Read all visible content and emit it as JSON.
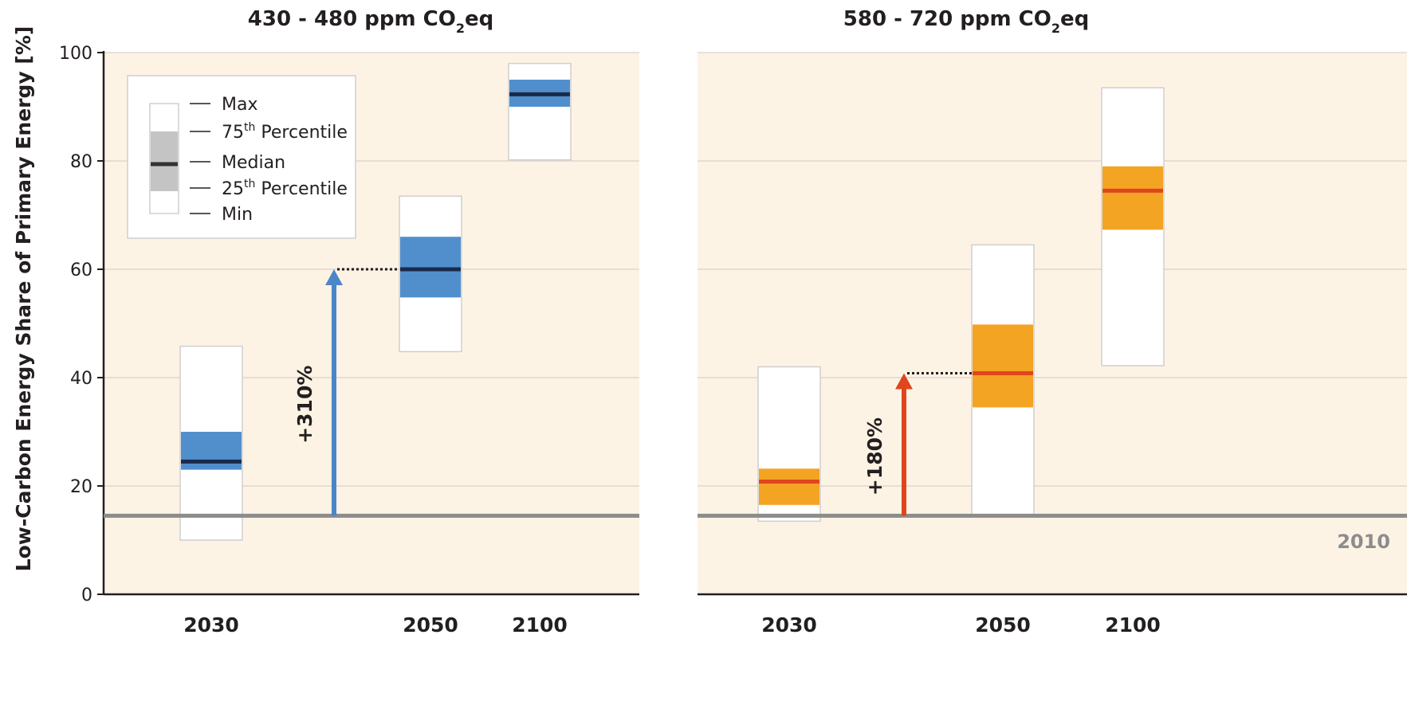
{
  "chart_data": {
    "type": "box",
    "ylabel": "Low-Carbon Energy Share of Primary Energy [%]",
    "ylim": [
      0,
      100
    ],
    "yticks": [
      "0",
      "20",
      "40",
      "60",
      "80",
      "100"
    ],
    "grid": true,
    "baseline": {
      "value": 14.5,
      "label": "2010"
    },
    "legend": {
      "placement": "top-left",
      "items": [
        "Max",
        "75",
        "Median",
        "25",
        "Min"
      ],
      "sup_th": "th",
      "percentile_word": " Percentile"
    },
    "panels": [
      {
        "title_main": "430 - 480 ppm CO",
        "title_sub": "2",
        "title_tail": "eq",
        "color": "#518fcc",
        "median_color": "#1a2a4a",
        "categories": [
          "2030",
          "2050",
          "2100"
        ],
        "boxes": [
          {
            "category": "2030",
            "min": 10,
            "q1": 23,
            "median": 24.5,
            "q3": 30,
            "max": 45.8
          },
          {
            "category": "2050",
            "min": 44.8,
            "q1": 54.8,
            "median": 60,
            "q3": 66,
            "max": 73.5
          },
          {
            "category": "2100",
            "min": 80.2,
            "q1": 90,
            "median": 92.3,
            "q3": 95,
            "max": 98
          }
        ],
        "arrow": {
          "from": 14.5,
          "to": 60,
          "label": "+310%"
        }
      },
      {
        "title_main": "580 - 720 ppm CO",
        "title_sub": "2",
        "title_tail": "eq",
        "color": "#f3a423",
        "median_color": "#e0461e",
        "categories": [
          "2030",
          "2050",
          "2100"
        ],
        "boxes": [
          {
            "category": "2030",
            "min": 13.5,
            "q1": 16.5,
            "median": 20.8,
            "q3": 23.2,
            "max": 42
          },
          {
            "category": "2050",
            "min": 14.5,
            "q1": 34.5,
            "median": 40.8,
            "q3": 49.8,
            "max": 64.5
          },
          {
            "category": "2100",
            "min": 42.2,
            "q1": 67.3,
            "median": 74.5,
            "q3": 79,
            "max": 93.5
          }
        ],
        "arrow": {
          "from": 14.5,
          "to": 40.8,
          "label": "+180%"
        }
      }
    ]
  },
  "colors": {
    "panel_bg": "#fdf3e5",
    "grid": "#d9d2c8",
    "baseline": "#8c8c8c",
    "arrow_left": "#4a86c8",
    "arrow_right": "#e0461e"
  }
}
